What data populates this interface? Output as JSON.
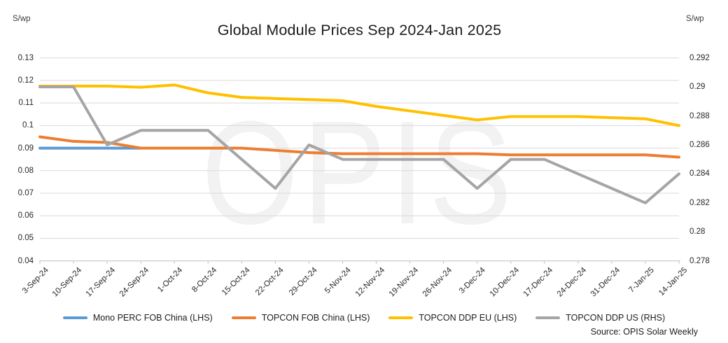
{
  "source": "Source: OPIS Solar Weekly",
  "watermark": "OPIS",
  "chart_data": {
    "type": "line",
    "title": "Global Module Prices Sep 2024-Jan 2025",
    "grid": true,
    "legend_position": "bottom",
    "categories": [
      "3-Sep-24",
      "10-Sep-24",
      "17-Sep-24",
      "24-Sep-24",
      "1-Oct-24",
      "8-Oct-24",
      "15-Oct-24",
      "22-Oct-24",
      "29-Oct-24",
      "5-Nov-24",
      "12-Nov-24",
      "19-Nov-24",
      "26-Nov-24",
      "3-Dec-24",
      "10-Dec-24",
      "17-Dec-24",
      "24-Dec-24",
      "31-Dec-24",
      "7-Jan-25",
      "14-Jan-25"
    ],
    "left_axis": {
      "unit": "S/wp",
      "min": 0.04,
      "max": 0.13,
      "ticks": [
        "0.13",
        "0.12",
        "0.11",
        "0.1",
        "0.09",
        "0.08",
        "0.07",
        "0.06",
        "0.05",
        "0.04"
      ]
    },
    "right_axis": {
      "unit": "S/wp",
      "min": 0.278,
      "max": 0.292,
      "ticks": [
        "0.292",
        "0.29",
        "0.288",
        "0.286",
        "0.284",
        "0.282",
        "0.28",
        "0.278"
      ]
    },
    "series": [
      {
        "name": "Mono PERC FOB China (LHS)",
        "axis": "left",
        "color": "#5B9BD5",
        "values": [
          0.09,
          0.09,
          0.09,
          0.09,
          null,
          null,
          null,
          null,
          null,
          null,
          null,
          null,
          null,
          null,
          null,
          null,
          null,
          null,
          null,
          null
        ]
      },
      {
        "name": "TOPCON FOB China (LHS)",
        "axis": "left",
        "color": "#ED7D31",
        "values": [
          0.095,
          0.093,
          0.0925,
          0.09,
          0.09,
          0.09,
          0.09,
          0.089,
          0.088,
          0.0875,
          0.0875,
          0.0875,
          0.0875,
          0.0875,
          0.087,
          0.087,
          0.087,
          0.087,
          0.087,
          0.086
        ]
      },
      {
        "name": "TOPCON DDP EU (LHS)",
        "axis": "left",
        "color": "#FFC000",
        "values": [
          0.1175,
          0.1175,
          0.1175,
          0.117,
          0.118,
          0.1145,
          0.1125,
          0.112,
          0.1115,
          0.111,
          0.1085,
          0.1065,
          0.1045,
          0.1025,
          0.104,
          0.104,
          0.104,
          0.1035,
          0.103,
          0.1
        ]
      },
      {
        "name": "TOPCON DDP US (RHS)",
        "axis": "right",
        "color": "#A5A5A5",
        "values": [
          0.29,
          0.29,
          0.286,
          0.287,
          0.287,
          0.287,
          0.285,
          0.283,
          0.286,
          0.285,
          0.285,
          0.285,
          0.285,
          0.283,
          0.285,
          0.285,
          0.284,
          0.283,
          0.282,
          0.284
        ]
      }
    ]
  }
}
